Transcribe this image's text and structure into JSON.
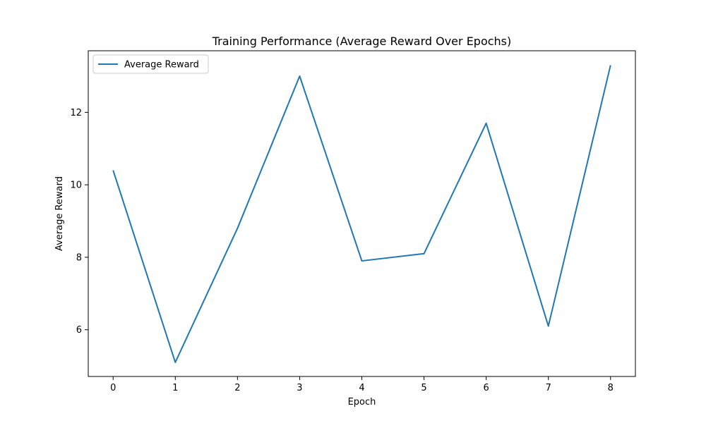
{
  "chart_data": {
    "type": "line",
    "title": "Training Performance (Average Reward Over Epochs)",
    "xlabel": "Epoch",
    "ylabel": "Average Reward",
    "x": [
      0,
      1,
      2,
      3,
      4,
      5,
      6,
      7,
      8
    ],
    "xticks": [
      "0",
      "1",
      "2",
      "3",
      "4",
      "5",
      "6",
      "7",
      "8"
    ],
    "yticks": [
      "6",
      "8",
      "10",
      "12"
    ],
    "xlim": [
      -0.4,
      8.4
    ],
    "ylim": [
      4.71,
      13.7
    ],
    "grid": false,
    "legend_position": "upper-left",
    "series": [
      {
        "name": "Average Reward",
        "color": "#1f77b4",
        "values": [
          10.4,
          5.1,
          8.8,
          13.0,
          7.9,
          8.1,
          11.7,
          6.1,
          13.3
        ]
      }
    ]
  }
}
